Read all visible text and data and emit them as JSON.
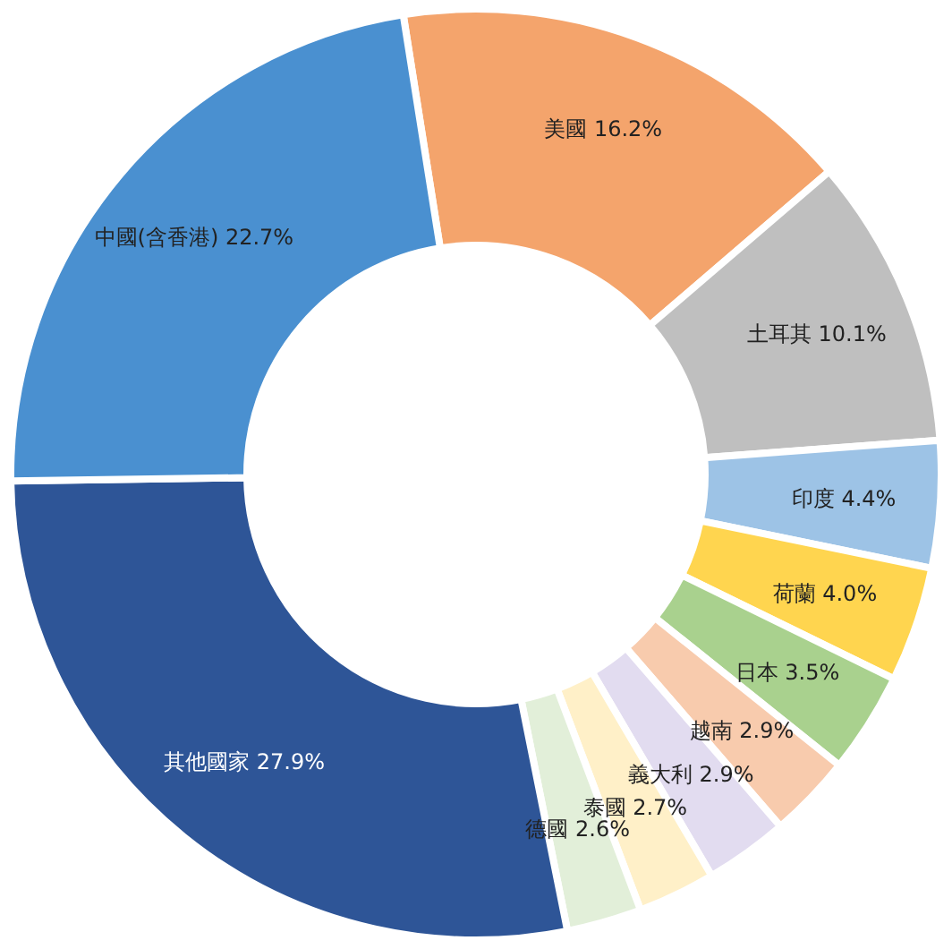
{
  "chart_data": {
    "type": "donut",
    "categories": [
      "美國",
      "土耳其",
      "印度",
      "荷蘭",
      "日本",
      "越南",
      "義大利",
      "泰國",
      "德國",
      "其他國家",
      "中國(含香港)"
    ],
    "values": [
      16.2,
      10.1,
      4.4,
      4.0,
      3.5,
      2.9,
      2.9,
      2.7,
      2.6,
      27.9,
      22.7
    ],
    "value_labels": [
      "16.2%",
      "10.1%",
      "4.4%",
      "4.0%",
      "3.5%",
      "2.9%",
      "2.9%",
      "2.7%",
      "2.6%",
      "27.9%",
      "22.7%"
    ],
    "colors": [
      "#f4a46c",
      "#bfbfbf",
      "#9dc3e6",
      "#ffd54f",
      "#a9d18e",
      "#f8cbad",
      "#e2dcf0",
      "#fff0c8",
      "#e2efd9",
      "#2e5597",
      "#4a90d0"
    ]
  }
}
